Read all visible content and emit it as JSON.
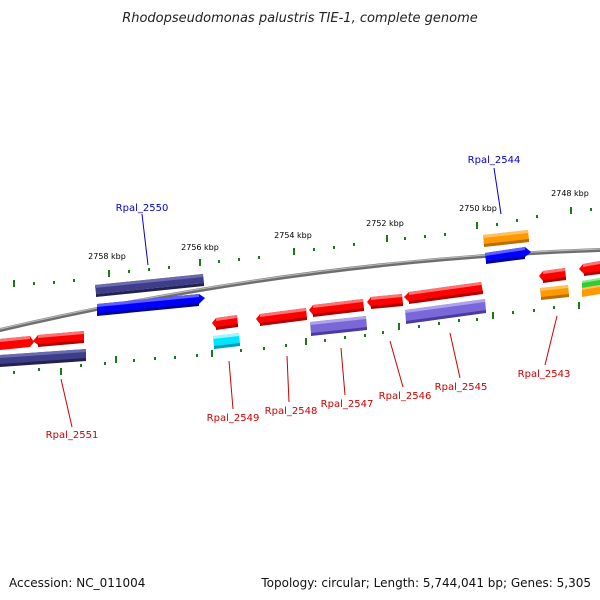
{
  "title": "Rhodopseudomonas palustris TIE-1, complete genome",
  "footer": {
    "accession": "Accession: NC_011004",
    "topology": "Topology: circular; Length: 5,744,041 bp; Genes: 5,305"
  },
  "colors": {
    "backbone": "#8a8a8a",
    "tick": "#1a7a1a",
    "label_forward": "#0000cc",
    "label_reverse": "#cc0000",
    "red": "#ff0000",
    "navy": "#3d3d8a",
    "blue": "#0000ff",
    "slate": "#7b68d8",
    "orange": "#ff9900",
    "cyan": "#00e5ff",
    "green": "#33cc33"
  },
  "kbp_markers": [
    "2758 kbp",
    "2756 kbp",
    "2754 kbp",
    "2752 kbp",
    "2750 kbp",
    "2748 kbp"
  ],
  "gene_labels": [
    {
      "text": "Rpal_2550",
      "strand": "forward"
    },
    {
      "text": "Rpal_2544",
      "strand": "forward"
    },
    {
      "text": "Rpal_2551",
      "strand": "reverse"
    },
    {
      "text": "Rpal_2549",
      "strand": "reverse"
    },
    {
      "text": "Rpal_2548",
      "strand": "reverse"
    },
    {
      "text": "Rpal_2547",
      "strand": "reverse"
    },
    {
      "text": "Rpal_2546",
      "strand": "reverse"
    },
    {
      "text": "Rpal_2545",
      "strand": "reverse"
    },
    {
      "text": "Rpal_2543",
      "strand": "reverse"
    }
  ]
}
